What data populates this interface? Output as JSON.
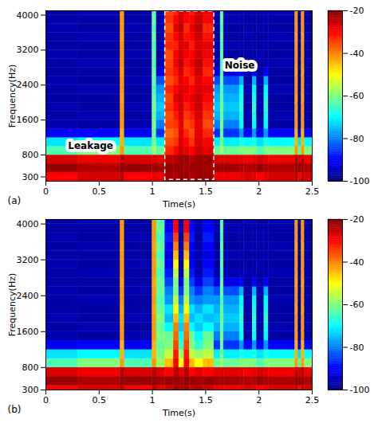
{
  "chart_data": [
    {
      "type": "heatmap",
      "panel_label": "(a)",
      "x_label": "Time(s)",
      "y_label": "Frequency(Hz)",
      "xlim": [
        0,
        2.5
      ],
      "xticks": [
        0,
        0.5,
        1,
        1.5,
        2,
        2.5
      ],
      "ylim": [
        200,
        4100
      ],
      "yticks": [
        300,
        800,
        1600,
        2400,
        3200,
        4000
      ],
      "x_edges": [
        0,
        0.3,
        0.7,
        0.74,
        1.0,
        1.04,
        1.12,
        1.2,
        1.25,
        1.3,
        1.35,
        1.4,
        1.48,
        1.58,
        1.64,
        1.67,
        1.82,
        1.86,
        1.94,
        1.98,
        2.05,
        2.09,
        2.34,
        2.37,
        2.4,
        2.43,
        2.5
      ],
      "y_edges": [
        200,
        400,
        600,
        800,
        1000,
        1200,
        1400,
        1600,
        1800,
        2000,
        2200,
        2400,
        2600,
        2800,
        3000,
        3200,
        3400,
        3600,
        3800,
        4000,
        4200
      ],
      "cells": [
        [
          -30,
          -22,
          -27,
          -64,
          -72,
          -91,
          -96,
          -97,
          -96,
          -97,
          -97,
          -96,
          -97,
          -97,
          -96,
          -97,
          -97,
          -96,
          -97,
          -97
        ],
        [
          -27,
          -24,
          -29,
          -60,
          -70,
          -90,
          -97,
          -96,
          -97,
          -97,
          -96,
          -97,
          -97,
          -96,
          -97,
          -97,
          -96,
          -97,
          -97,
          -96
        ],
        [
          -24,
          -22,
          -24,
          -42,
          -44,
          -44,
          -42,
          -42,
          -42,
          -43,
          -42,
          -42,
          -43,
          -42,
          -42,
          -42,
          -43,
          -42,
          -42,
          -42
        ],
        [
          -30,
          -22,
          -27,
          -64,
          -72,
          -91,
          -96,
          -97,
          -96,
          -97,
          -97,
          -96,
          -97,
          -97,
          -96,
          -97,
          -97,
          -96,
          -97,
          -97
        ],
        [
          -28,
          -23,
          -27,
          -58,
          -60,
          -62,
          -60,
          -62,
          -60,
          -62,
          -64,
          -62,
          -62,
          -64,
          -62,
          -64,
          -62,
          -64,
          -62,
          -64
        ],
        [
          -29,
          -23,
          -28,
          -62,
          -71,
          -86,
          -80,
          -76,
          -74,
          -76,
          -78,
          -84,
          -92,
          -96,
          -97,
          -96,
          -97,
          -97,
          -96,
          -97
        ],
        [
          -23,
          -22,
          -25,
          -33,
          -36,
          -38,
          -35,
          -36,
          -34,
          -35,
          -33,
          -36,
          -34,
          -35,
          -36,
          -33,
          -34,
          -36,
          -34,
          -35
        ],
        [
          -24,
          -22,
          -24,
          -30,
          -34,
          -36,
          -34,
          -32,
          -30,
          -28,
          -30,
          -33,
          -31,
          -29,
          -30,
          -32,
          -30,
          -28,
          -30,
          -32
        ],
        [
          -22,
          -22,
          -22,
          -26,
          -27,
          -28,
          -28,
          -27,
          -26,
          -26,
          -27,
          -28,
          -26,
          -25,
          -26,
          -27,
          -26,
          -25,
          -26,
          -27
        ],
        [
          -22,
          -23,
          -22,
          -28,
          -30,
          -33,
          -36,
          -34,
          -32,
          -30,
          -28,
          -30,
          -33,
          -31,
          -29,
          -28,
          -31,
          -33,
          -30,
          -29
        ],
        [
          -24,
          -22,
          -24,
          -30,
          -34,
          -36,
          -34,
          -32,
          -30,
          -28,
          -30,
          -33,
          -31,
          -29,
          -30,
          -32,
          -30,
          -28,
          -30,
          -32
        ],
        [
          -22,
          -22,
          -22,
          -26,
          -27,
          -28,
          -28,
          -27,
          -26,
          -26,
          -27,
          -28,
          -26,
          -25,
          -26,
          -27,
          -26,
          -25,
          -26,
          -27
        ],
        [
          -22,
          -23,
          -22,
          -28,
          -30,
          -33,
          -36,
          -34,
          -32,
          -30,
          -28,
          -30,
          -33,
          -31,
          -29,
          -28,
          -31,
          -33,
          -30,
          -29
        ],
        [
          -29,
          -23,
          -28,
          -62,
          -71,
          -86,
          -80,
          -76,
          -74,
          -76,
          -78,
          -84,
          -92,
          -96,
          -97,
          -96,
          -97,
          -97,
          -96,
          -97
        ],
        [
          -28,
          -23,
          -27,
          -58,
          -60,
          -62,
          -60,
          -62,
          -60,
          -62,
          -64,
          -62,
          -62,
          -64,
          -62,
          -64,
          -62,
          -64,
          -62,
          -64
        ],
        [
          -29,
          -23,
          -28,
          -62,
          -71,
          -86,
          -80,
          -76,
          -74,
          -76,
          -78,
          -84,
          -92,
          -96,
          -97,
          -96,
          -97,
          -97,
          -96,
          -97
        ],
        [
          -28,
          -24,
          -28,
          -60,
          -68,
          -78,
          -70,
          -68,
          -66,
          -68,
          -70,
          -76,
          -90,
          -96,
          -97,
          -96,
          -97,
          -97,
          -96,
          -97
        ],
        [
          -27,
          -24,
          -29,
          -60,
          -70,
          -90,
          -97,
          -96,
          -97,
          -97,
          -96,
          -97,
          -97,
          -96,
          -97,
          -97,
          -96,
          -97,
          -97,
          -96
        ],
        [
          -28,
          -24,
          -28,
          -60,
          -68,
          -78,
          -70,
          -68,
          -66,
          -68,
          -70,
          -76,
          -90,
          -96,
          -97,
          -96,
          -97,
          -97,
          -96,
          -97
        ],
        [
          -30,
          -22,
          -27,
          -64,
          -72,
          -91,
          -96,
          -97,
          -96,
          -97,
          -97,
          -96,
          -97,
          -97,
          -96,
          -97,
          -97,
          -96,
          -97,
          -97
        ],
        [
          -28,
          -24,
          -28,
          -60,
          -68,
          -78,
          -70,
          -68,
          -66,
          -68,
          -70,
          -76,
          -90,
          -96,
          -97,
          -96,
          -97,
          -97,
          -96,
          -97
        ],
        [
          -27,
          -24,
          -29,
          -60,
          -70,
          -90,
          -97,
          -96,
          -97,
          -97,
          -96,
          -97,
          -97,
          -96,
          -97,
          -97,
          -96,
          -97,
          -97,
          -96
        ],
        [
          -24,
          -22,
          -24,
          -42,
          -44,
          -44,
          -42,
          -42,
          -42,
          -43,
          -42,
          -42,
          -43,
          -42,
          -42,
          -42,
          -43,
          -42,
          -42,
          -42
        ],
        [
          -30,
          -22,
          -27,
          -64,
          -72,
          -91,
          -96,
          -97,
          -96,
          -97,
          -97,
          -96,
          -97,
          -97,
          -96,
          -97,
          -97,
          -96,
          -97,
          -97
        ],
        [
          -24,
          -22,
          -24,
          -42,
          -44,
          -44,
          -42,
          -42,
          -42,
          -43,
          -42,
          -42,
          -43,
          -42,
          -42,
          -42,
          -43,
          -42,
          -42,
          -42
        ],
        [
          -27,
          -24,
          -29,
          -60,
          -70,
          -90,
          -97,
          -96,
          -97,
          -97,
          -96,
          -97,
          -97,
          -96,
          -97,
          -97,
          -96,
          -97,
          -97,
          -96
        ]
      ],
      "colorbar": {
        "range": [
          -100,
          -20
        ],
        "ticks": [
          -100,
          -80,
          -60,
          -40,
          -20
        ]
      },
      "annotations": [
        {
          "text": "Leakage",
          "x": 0.42,
          "y": 1000
        },
        {
          "text": "Noise",
          "x": 1.82,
          "y": 2850
        }
      ],
      "highlight_box": {
        "x": [
          1.12,
          1.58
        ],
        "y": [
          230,
          4080
        ]
      }
    },
    {
      "type": "heatmap",
      "panel_label": "(b)",
      "x_label": "Time(s)",
      "y_label": "Frequency(Hz)",
      "xlim": [
        0,
        2.5
      ],
      "xticks": [
        0,
        0.5,
        1,
        1.5,
        2,
        2.5
      ],
      "ylim": [
        300,
        4100
      ],
      "yticks": [
        300,
        800,
        1600,
        2400,
        3200,
        4000
      ],
      "x_edges": [
        0,
        0.3,
        0.7,
        0.74,
        1.0,
        1.04,
        1.12,
        1.2,
        1.25,
        1.3,
        1.35,
        1.4,
        1.48,
        1.58,
        1.64,
        1.67,
        1.82,
        1.86,
        1.94,
        1.98,
        2.05,
        2.09,
        2.34,
        2.37,
        2.4,
        2.43,
        2.5
      ],
      "y_edges": [
        200,
        400,
        600,
        800,
        1000,
        1200,
        1400,
        1600,
        1800,
        2000,
        2200,
        2400,
        2600,
        2800,
        3000,
        3200,
        3400,
        3600,
        3800,
        4000,
        4200
      ],
      "cells": [
        [
          -30,
          -22,
          -27,
          -64,
          -72,
          -91,
          -96,
          -97,
          -96,
          -97,
          -97,
          -96,
          -97,
          -97,
          -96,
          -97,
          -97,
          -96,
          -97,
          -97
        ],
        [
          -27,
          -24,
          -29,
          -60,
          -70,
          -90,
          -97,
          -96,
          -97,
          -97,
          -96,
          -97,
          -97,
          -96,
          -97,
          -97,
          -96,
          -97,
          -97,
          -96
        ],
        [
          -24,
          -22,
          -24,
          -42,
          -44,
          -44,
          -42,
          -42,
          -42,
          -43,
          -42,
          -42,
          -43,
          -42,
          -42,
          -42,
          -43,
          -42,
          -42,
          -42
        ],
        [
          -30,
          -22,
          -27,
          -64,
          -72,
          -91,
          -96,
          -97,
          -96,
          -97,
          -97,
          -96,
          -97,
          -97,
          -96,
          -97,
          -97,
          -96,
          -97,
          -97
        ],
        [
          -24,
          -22,
          -24,
          -42,
          -44,
          -44,
          -42,
          -42,
          -42,
          -43,
          -42,
          -42,
          -43,
          -42,
          -42,
          -42,
          -43,
          -42,
          -42,
          -42
        ],
        [
          -28,
          -23,
          -27,
          -58,
          -60,
          -62,
          -60,
          -62,
          -60,
          -62,
          -64,
          -62,
          -62,
          -64,
          -62,
          -64,
          -62,
          -64,
          -62,
          -64
        ],
        [
          -26,
          -22,
          -30,
          -45,
          -55,
          -60,
          -62,
          -70,
          -75,
          -72,
          -78,
          -80,
          -85,
          -88,
          -90,
          -92,
          -90,
          -88,
          -90,
          -92
        ],
        [
          -22,
          -22,
          -24,
          -30,
          -32,
          -35,
          -38,
          -40,
          -45,
          -50,
          -55,
          -60,
          -60,
          -55,
          -50,
          -45,
          -40,
          -35,
          -30,
          -30
        ],
        [
          -24,
          -23,
          -28,
          -50,
          -58,
          -66,
          -70,
          -74,
          -72,
          -76,
          -80,
          -86,
          -92,
          -96,
          -97,
          -96,
          -97,
          -97,
          -96,
          -97
        ],
        [
          -22,
          -22,
          -24,
          -30,
          -32,
          -35,
          -38,
          -40,
          -45,
          -50,
          -55,
          -60,
          -60,
          -55,
          -50,
          -45,
          -40,
          -35,
          -30,
          -30
        ],
        [
          -26,
          -22,
          -30,
          -45,
          -55,
          -60,
          -62,
          -70,
          -75,
          -72,
          -78,
          -80,
          -85,
          -88,
          -90,
          -92,
          -90,
          -88,
          -90,
          -92
        ],
        [
          -24,
          -23,
          -28,
          -50,
          -58,
          -66,
          -70,
          -74,
          -72,
          -76,
          -80,
          -86,
          -92,
          -96,
          -97,
          -96,
          -97,
          -97,
          -96,
          -97
        ],
        [
          -26,
          -22,
          -30,
          -45,
          -55,
          -60,
          -62,
          -70,
          -75,
          -72,
          -78,
          -80,
          -85,
          -88,
          -90,
          -92,
          -90,
          -88,
          -90,
          -92
        ],
        [
          -29,
          -23,
          -28,
          -62,
          -71,
          -86,
          -80,
          -76,
          -74,
          -76,
          -78,
          -84,
          -92,
          -96,
          -97,
          -96,
          -97,
          -97,
          -96,
          -97
        ],
        [
          -28,
          -23,
          -27,
          -58,
          -60,
          -62,
          -60,
          -62,
          -60,
          -62,
          -64,
          -62,
          -62,
          -64,
          -62,
          -64,
          -62,
          -64,
          -62,
          -64
        ],
        [
          -29,
          -23,
          -28,
          -62,
          -71,
          -86,
          -80,
          -76,
          -74,
          -76,
          -78,
          -84,
          -92,
          -96,
          -97,
          -96,
          -97,
          -97,
          -96,
          -97
        ],
        [
          -28,
          -24,
          -28,
          -60,
          -68,
          -78,
          -70,
          -68,
          -66,
          -68,
          -70,
          -76,
          -90,
          -96,
          -97,
          -96,
          -97,
          -97,
          -96,
          -97
        ],
        [
          -27,
          -24,
          -29,
          -60,
          -70,
          -90,
          -97,
          -96,
          -97,
          -97,
          -96,
          -97,
          -97,
          -96,
          -97,
          -97,
          -96,
          -97,
          -97,
          -96
        ],
        [
          -28,
          -24,
          -28,
          -60,
          -68,
          -78,
          -70,
          -68,
          -66,
          -68,
          -70,
          -76,
          -90,
          -96,
          -97,
          -96,
          -97,
          -97,
          -96,
          -97
        ],
        [
          -30,
          -22,
          -27,
          -64,
          -72,
          -91,
          -96,
          -97,
          -96,
          -97,
          -97,
          -96,
          -97,
          -97,
          -96,
          -97,
          -97,
          -96,
          -97,
          -97
        ],
        [
          -28,
          -24,
          -28,
          -60,
          -68,
          -78,
          -70,
          -68,
          -66,
          -68,
          -70,
          -76,
          -90,
          -96,
          -97,
          -96,
          -97,
          -97,
          -96,
          -97
        ],
        [
          -27,
          -24,
          -29,
          -60,
          -70,
          -90,
          -97,
          -96,
          -97,
          -97,
          -96,
          -97,
          -97,
          -96,
          -97,
          -97,
          -96,
          -97,
          -97,
          -96
        ],
        [
          -24,
          -22,
          -24,
          -42,
          -44,
          -44,
          -42,
          -42,
          -42,
          -43,
          -42,
          -42,
          -43,
          -42,
          -42,
          -42,
          -43,
          -42,
          -42,
          -42
        ],
        [
          -30,
          -22,
          -27,
          -64,
          -72,
          -91,
          -96,
          -97,
          -96,
          -97,
          -97,
          -96,
          -97,
          -97,
          -96,
          -97,
          -97,
          -96,
          -97,
          -97
        ],
        [
          -24,
          -22,
          -24,
          -42,
          -44,
          -44,
          -42,
          -42,
          -42,
          -43,
          -42,
          -42,
          -43,
          -42,
          -42,
          -42,
          -43,
          -42,
          -42,
          -42
        ],
        [
          -27,
          -24,
          -29,
          -60,
          -70,
          -90,
          -97,
          -96,
          -97,
          -97,
          -96,
          -97,
          -97,
          -96,
          -97,
          -97,
          -96,
          -97,
          -97,
          -96
        ]
      ],
      "colorbar": {
        "range": [
          -100,
          -20
        ],
        "ticks": [
          -100,
          -80,
          -60,
          -40,
          -20
        ]
      }
    }
  ]
}
